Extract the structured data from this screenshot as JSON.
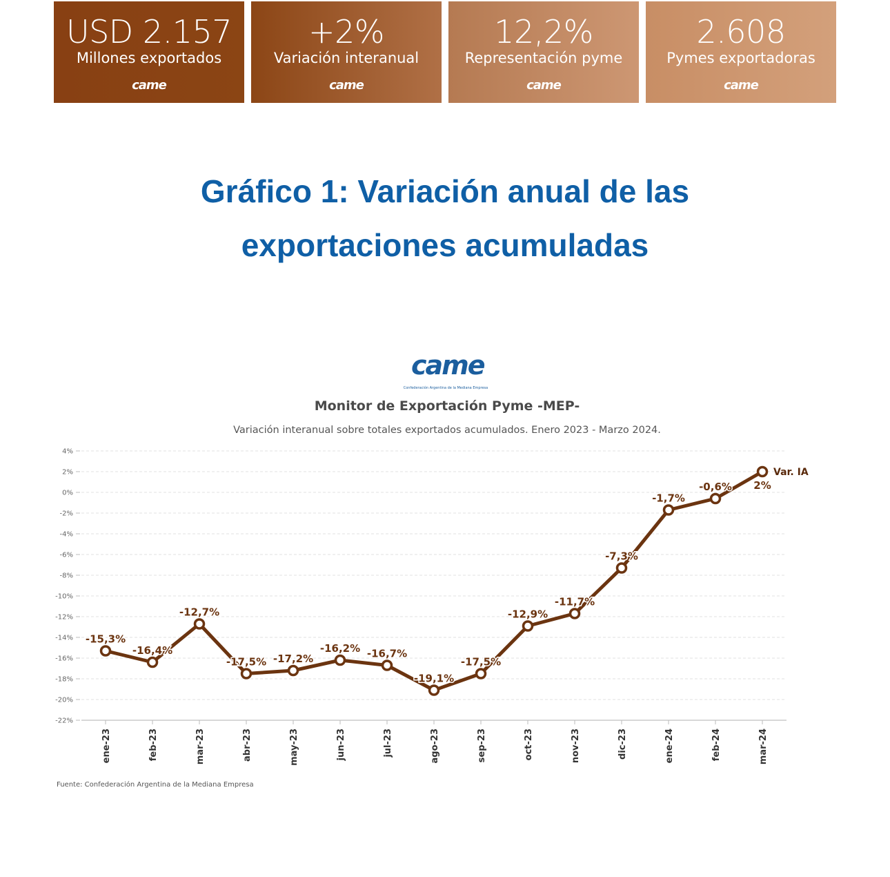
{
  "kpis": [
    {
      "value": "USD 2.157",
      "label": "Millones exportados",
      "brand": "came"
    },
    {
      "value": "+2%",
      "label": "Variación interanual",
      "brand": "came"
    },
    {
      "value": "12,2%",
      "label": "Representación pyme",
      "brand": "came"
    },
    {
      "value": "2.608",
      "label": "Pymes exportadoras",
      "brand": "came"
    }
  ],
  "page_title": {
    "line1": "Gráfico 1: Variación anual de las",
    "line2": "exportaciones acumuladas"
  },
  "logo": {
    "text": "came",
    "subtitle": "Confederación Argentina de la Mediana Empresa"
  },
  "source": "Fuente: Confederación Argentina de la Mediana Empresa",
  "colors": {
    "line": "#6b3410",
    "label": "#6b3410",
    "title_blue": "#0f5fa6"
  },
  "chart_data": {
    "type": "line",
    "title": "Monitor de Exportación Pyme -MEP-",
    "subtitle": "Variación interanual sobre totales exportados acumulados. Enero 2023 - Marzo 2024.",
    "x": [
      "ene-23",
      "feb-23",
      "mar-23",
      "abr-23",
      "may-23",
      "jun-23",
      "jul-23",
      "ago-23",
      "sep-23",
      "oct-23",
      "nov-23",
      "dic-23",
      "ene-24",
      "feb-24",
      "mar-24"
    ],
    "series": [
      {
        "name": "Var. IA",
        "values": [
          -15.3,
          -16.4,
          -12.7,
          -17.5,
          -17.2,
          -16.2,
          -16.7,
          -19.1,
          -17.5,
          -12.9,
          -11.7,
          -7.3,
          -1.7,
          -0.6,
          2
        ],
        "labels": [
          "-15,3%",
          "-16,4%",
          "-12,7%",
          "-17,5%",
          "-17,2%",
          "-16,2%",
          "-16,7%",
          "-19,1%",
          "-17,5%",
          "-12,9%",
          "-11,7%",
          "-7,3%",
          "-1,7%",
          "-0,6%",
          "2%"
        ]
      }
    ],
    "ylim": [
      -22,
      4
    ],
    "yticks": [
      4,
      2,
      0,
      -2,
      -4,
      -6,
      -8,
      -10,
      -12,
      -14,
      -16,
      -18,
      -20,
      -22
    ],
    "ytick_labels": [
      "4%",
      "2%",
      "0%",
      "-2%",
      "-4%",
      "-6%",
      "-8%",
      "-10%",
      "-12%",
      "-14%",
      "-16%",
      "-18%",
      "-20%",
      "-22%"
    ],
    "grid": true,
    "legend": "series name shown at end of line"
  }
}
